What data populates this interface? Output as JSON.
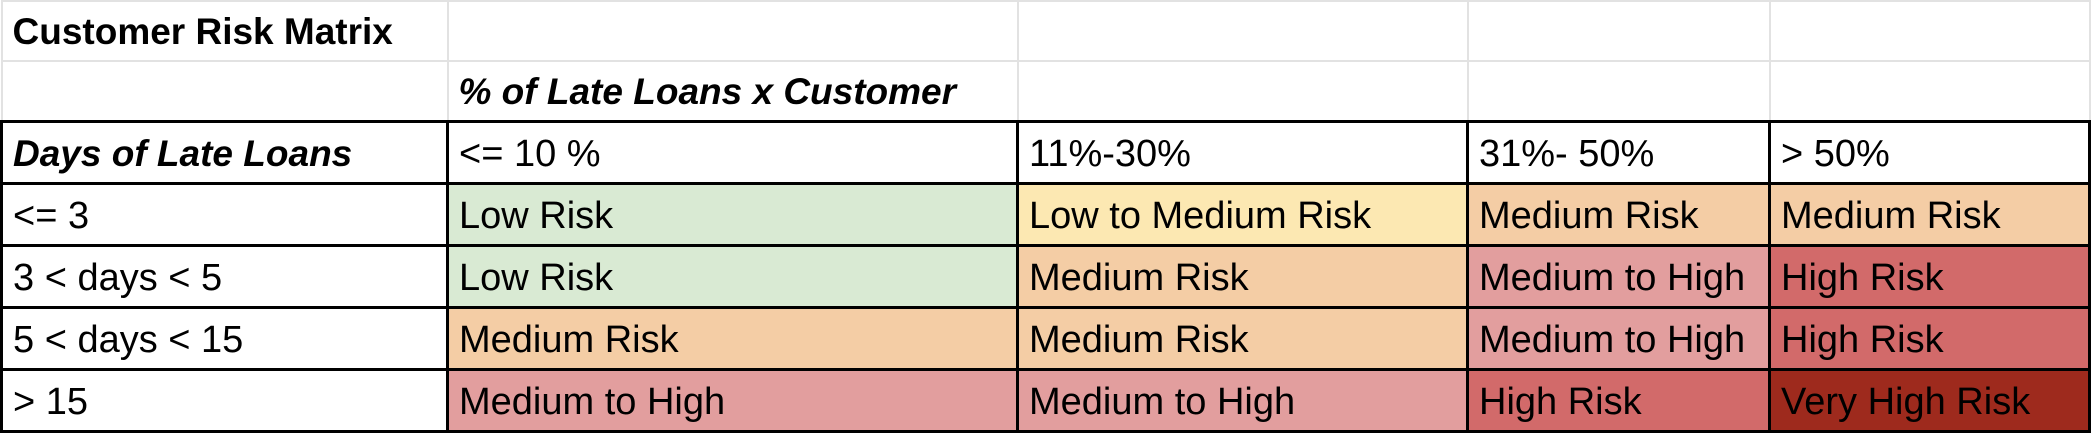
{
  "title": "Customer Risk Matrix",
  "column_group_header": "% of Late Loans x Customer",
  "row_header": "Days of Late Loans",
  "columns": [
    "<= 10 %",
    "11%-30%",
    "31%- 50%",
    "> 50%"
  ],
  "rows": [
    {
      "label": "<= 3",
      "cells": [
        "Low Risk",
        "Low to Medium Risk",
        "Medium Risk",
        "Medium Risk"
      ]
    },
    {
      "label": "3 < days < 5",
      "cells": [
        "Low Risk",
        "Medium Risk",
        "Medium to High",
        "High Risk"
      ]
    },
    {
      "label": "5 < days < 15",
      "cells": [
        "Medium Risk",
        "Medium Risk",
        "Medium to High",
        "High Risk"
      ]
    },
    {
      "label": "> 15",
      "cells": [
        "Medium to High",
        "Medium to High",
        "High Risk",
        "Very High Risk"
      ]
    }
  ],
  "risk_colors": {
    "Low Risk": "#d9ead3",
    "Low to Medium Risk": "#fce8b2",
    "Medium Risk": "#f4cda5",
    "Medium to High": "#e29e9e",
    "High Risk": "#d26a6a",
    "Very High Risk": "#9e2a1d"
  }
}
